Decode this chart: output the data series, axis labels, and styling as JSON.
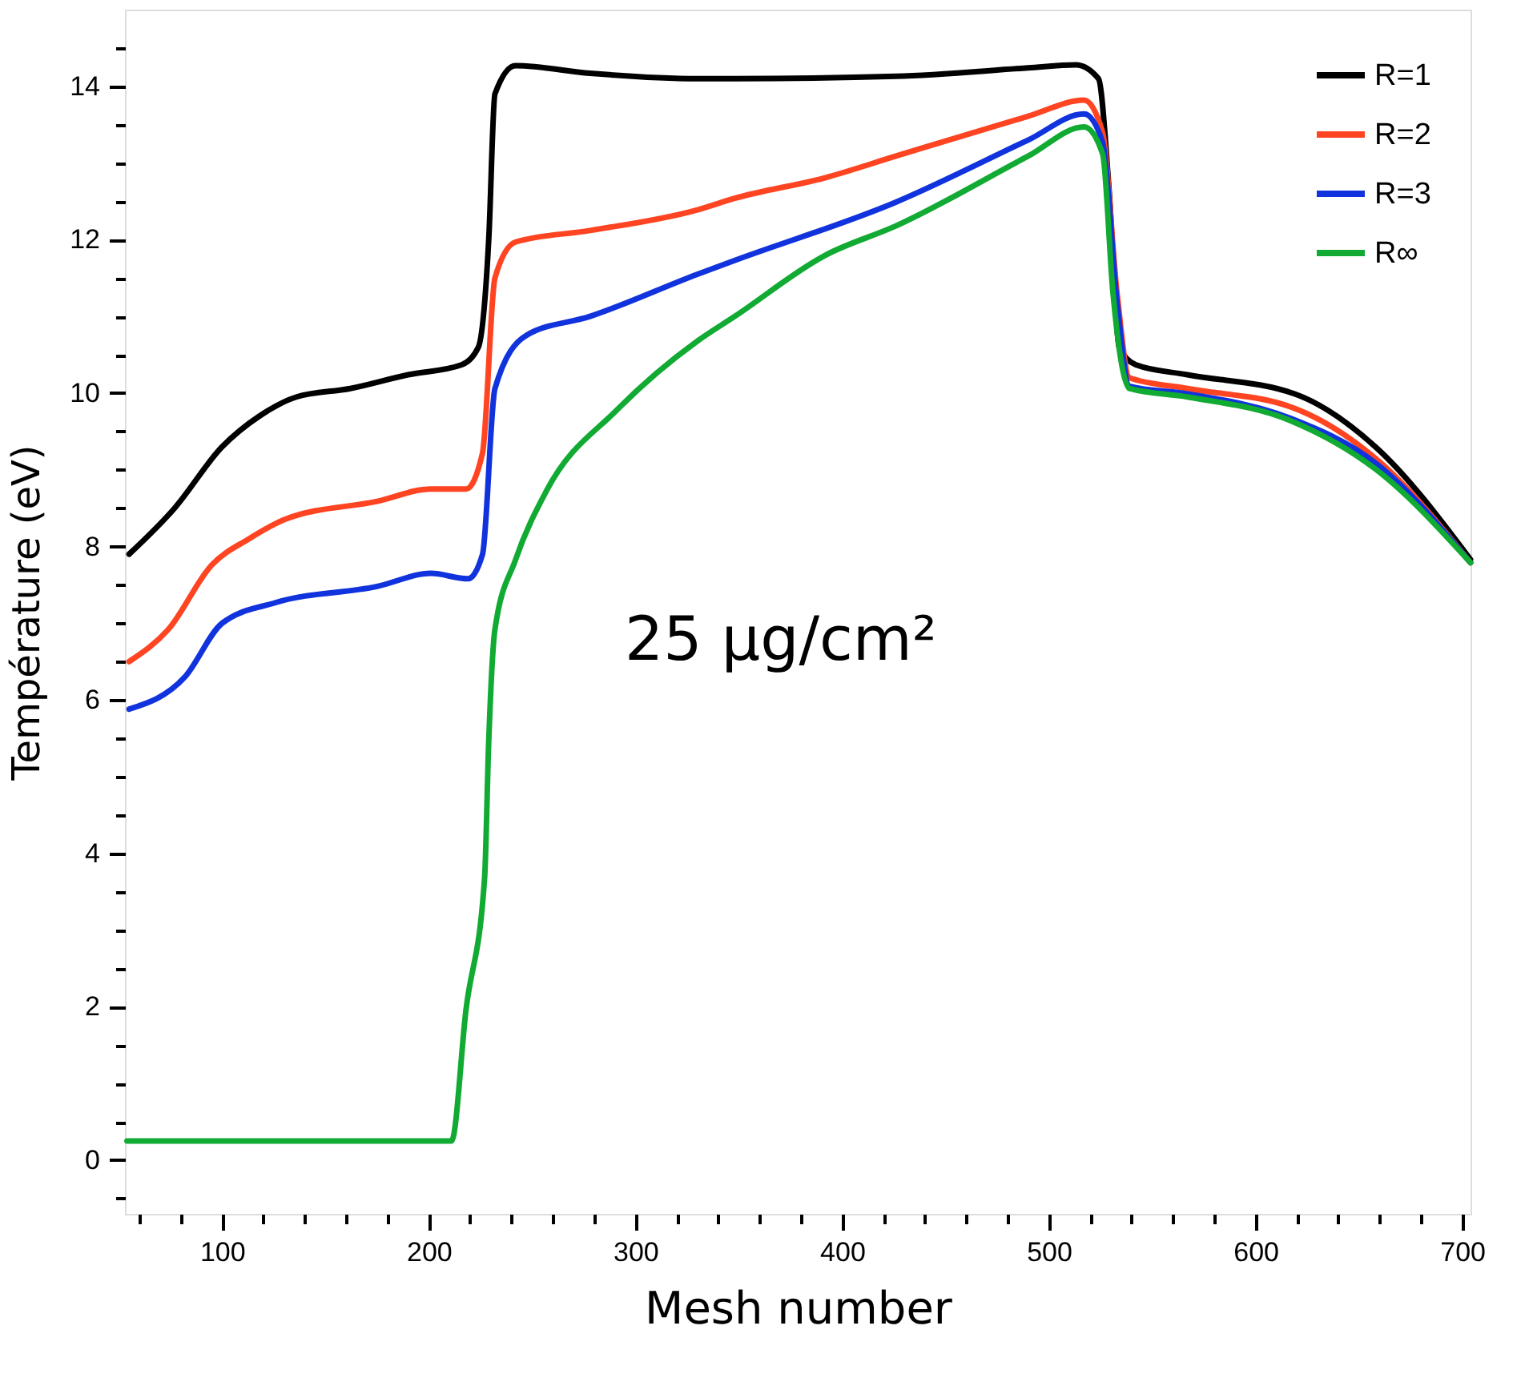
{
  "chart_data": {
    "type": "line",
    "xlabel": "Mesh number",
    "ylabel": "Température (eV)",
    "annotations": [
      "25 μg/cm²"
    ],
    "xlim": [
      53,
      704
    ],
    "ylim": [
      -0.7,
      15
    ],
    "xticks": [
      {
        "value": 60,
        "label": null
      },
      {
        "value": 80,
        "label": null
      },
      100,
      {
        "value": 120,
        "label": null
      },
      {
        "value": 140,
        "label": null
      },
      {
        "value": 160,
        "label": null
      },
      {
        "value": 180,
        "label": null
      },
      200,
      {
        "value": 220,
        "label": null
      },
      {
        "value": 240,
        "label": null
      },
      {
        "value": 260,
        "label": null
      },
      {
        "value": 280,
        "label": null
      },
      300,
      {
        "value": 320,
        "label": null
      },
      {
        "value": 340,
        "label": null
      },
      {
        "value": 360,
        "label": null
      },
      {
        "value": 380,
        "label": null
      },
      400,
      {
        "value": 420,
        "label": null
      },
      {
        "value": 440,
        "label": null
      },
      {
        "value": 460,
        "label": null
      },
      {
        "value": 480,
        "label": null
      },
      500,
      {
        "value": 520,
        "label": null
      },
      {
        "value": 540,
        "label": null
      },
      {
        "value": 560,
        "label": null
      },
      {
        "value": 580,
        "label": null
      },
      600,
      {
        "value": 620,
        "label": null
      },
      {
        "value": 640,
        "label": null
      },
      {
        "value": 660,
        "label": null
      },
      {
        "value": 680,
        "label": null
      },
      700
    ],
    "yticks": [
      {
        "value": -0.5,
        "label": null
      },
      0,
      {
        "value": 0.5,
        "label": null
      },
      {
        "value": 1,
        "label": null
      },
      {
        "value": 1.5,
        "label": null
      },
      2,
      {
        "value": 2.5,
        "label": null
      },
      {
        "value": 3,
        "label": null
      },
      {
        "value": 3.5,
        "label": null
      },
      4,
      {
        "value": 4.5,
        "label": null
      },
      {
        "value": 5,
        "label": null
      },
      {
        "value": 5.5,
        "label": null
      },
      6,
      {
        "value": 6.5,
        "label": null
      },
      {
        "value": 7,
        "label": null
      },
      {
        "value": 7.5,
        "label": null
      },
      8,
      {
        "value": 8.5,
        "label": null
      },
      {
        "value": 9,
        "label": null
      },
      {
        "value": 9.5,
        "label": null
      },
      10,
      {
        "value": 10.5,
        "label": null
      },
      {
        "value": 11,
        "label": null
      },
      {
        "value": 11.5,
        "label": null
      },
      12,
      {
        "value": 12.5,
        "label": null
      },
      {
        "value": 13,
        "label": null
      },
      {
        "value": 13.5,
        "label": null
      },
      14,
      {
        "value": 14.5,
        "label": null
      }
    ],
    "grid": false,
    "legend": "top right",
    "marker": "none",
    "line_style": "solid",
    "series": [
      {
        "name": "R=1",
        "color": "#000000",
        "x": [
          55,
          77,
          100,
          118,
          136,
          162,
          190,
          216,
          224,
          229,
          232,
          242,
          278,
          330,
          348,
          426,
          490,
          513,
          524,
          529,
          534,
          542,
          567,
          619,
          658,
          704
        ],
        "values": [
          7.9,
          8.5,
          9.3,
          9.7,
          9.95,
          10.06,
          10.24,
          10.37,
          10.6,
          12.0,
          13.9,
          14.27,
          14.17,
          14.1,
          14.1,
          14.13,
          14.24,
          14.28,
          14.1,
          12.7,
          10.6,
          10.37,
          10.24,
          9.99,
          9.3,
          7.83
        ]
      },
      {
        "name": "R=2",
        "color": "#ff4422",
        "x": [
          55,
          74,
          95,
          113,
          131,
          175,
          201,
          218,
          226,
          232,
          242,
          278,
          330,
          348,
          392,
          426,
          490,
          517,
          526,
          533,
          539,
          567,
          617,
          658,
          704
        ],
        "values": [
          6.5,
          6.92,
          7.76,
          8.1,
          8.36,
          8.59,
          8.75,
          8.75,
          9.22,
          11.5,
          11.97,
          12.12,
          12.39,
          12.54,
          12.81,
          13.09,
          13.61,
          13.82,
          13.4,
          11.3,
          10.2,
          10.06,
          9.82,
          9.15,
          7.79
        ]
      },
      {
        "name": "R=3",
        "color": "#1133dd",
        "x": [
          55,
          82,
          100,
          126,
          175,
          201,
          219,
          226,
          232,
          247,
          278,
          330,
          348,
          426,
          490,
          517,
          526,
          533,
          539,
          567,
          617,
          658,
          704
        ],
        "values": [
          5.88,
          6.3,
          7.0,
          7.27,
          7.48,
          7.65,
          7.58,
          7.9,
          10.06,
          10.75,
          11.0,
          11.55,
          11.73,
          12.49,
          13.3,
          13.64,
          13.27,
          11.18,
          10.09,
          9.99,
          9.67,
          9.09,
          7.79
        ]
      },
      {
        "name": "R∞",
        "color": "#11aa33",
        "x": [
          54,
          211,
          218,
          227,
          229,
          232,
          242,
          257,
          291,
          330,
          348,
          392,
          426,
          490,
          517,
          526,
          531,
          539,
          567,
          617,
          658,
          704
        ],
        "values": [
          0.25,
          0.25,
          1.96,
          3.68,
          5.46,
          6.92,
          7.83,
          8.73,
          9.78,
          10.68,
          11.0,
          11.8,
          12.18,
          13.09,
          13.47,
          13.12,
          11.31,
          10.06,
          9.95,
          9.64,
          9.01,
          7.79
        ]
      }
    ]
  }
}
